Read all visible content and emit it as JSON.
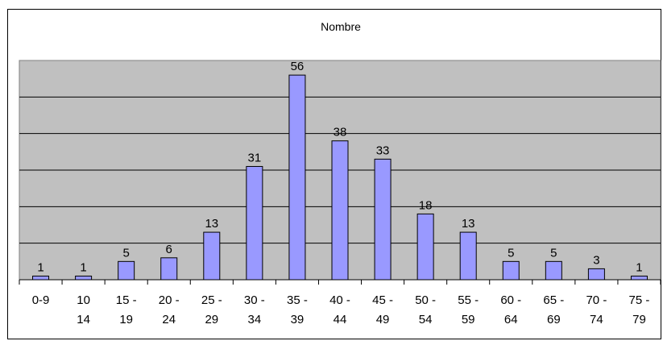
{
  "chart_data": {
    "type": "bar",
    "title": "Nombre",
    "xlabel": "",
    "ylabel": "",
    "categories": [
      [
        "0-9"
      ],
      [
        "10",
        "14"
      ],
      [
        "15 -",
        "19"
      ],
      [
        "20 -",
        "24"
      ],
      [
        "25 -",
        "29"
      ],
      [
        "30 -",
        "34"
      ],
      [
        "35 -",
        "39"
      ],
      [
        "40 -",
        "44"
      ],
      [
        "45 -",
        "49"
      ],
      [
        "50 -",
        "54"
      ],
      [
        "55 -",
        "59"
      ],
      [
        "60 -",
        "64"
      ],
      [
        "65 -",
        "69"
      ],
      [
        "70 -",
        "74"
      ],
      [
        "75 -",
        "79"
      ]
    ],
    "values": [
      1,
      1,
      5,
      6,
      13,
      31,
      56,
      38,
      33,
      18,
      13,
      5,
      5,
      3,
      1
    ],
    "ylim": [
      0,
      60
    ],
    "grid": true,
    "legend": "none",
    "colors": {
      "plot_background": "#c0c0c0",
      "bar_fill": "#9999ff",
      "bar_stroke": "#000000",
      "gridline": "#000000"
    }
  }
}
